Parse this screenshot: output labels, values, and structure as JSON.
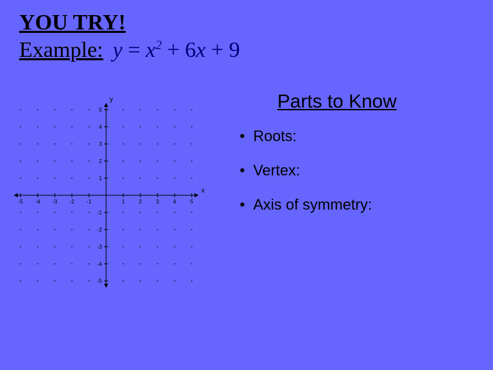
{
  "title": "YOU TRY!",
  "example_label": "Example:",
  "equation": {
    "lhs": "y",
    "eq": "=",
    "term1_base": "x",
    "term1_exp": "2",
    "plus1": "+",
    "term2_coef": "6",
    "term2_var": "x",
    "plus2": "+",
    "term3": "9",
    "color": "#00007a"
  },
  "parts_header": "Parts to Know",
  "bullets": [
    "Roots:",
    "Vertex:",
    "Axis of symmetry:"
  ],
  "graph": {
    "type": "cartesian-grid",
    "xlim": [
      -5,
      5
    ],
    "ylim": [
      -5,
      5
    ],
    "xtick_step": 1,
    "ytick_step": 1,
    "xticks": [
      -5,
      -4,
      -3,
      -2,
      -1,
      1,
      2,
      3,
      4,
      5
    ],
    "yticks": [
      -5,
      -4,
      -3,
      -2,
      -1,
      1,
      2,
      3,
      4,
      5
    ],
    "axis_color": "#000000",
    "grid_dot_color": "#000000",
    "background_color": "#6666ff",
    "tick_fontsize": 8,
    "x_axis_label": "x",
    "y_axis_label": "y",
    "arrowheads": true
  },
  "slide": {
    "background_color": "#6666ff",
    "title_fontsize": 32,
    "example_fontsize": 32,
    "parts_header_fontsize": 28,
    "bullet_fontsize": 22
  }
}
